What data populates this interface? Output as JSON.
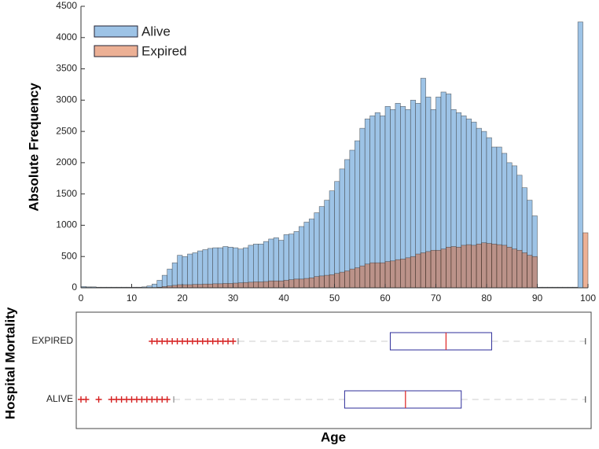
{
  "chart_data": [
    {
      "type": "histogram",
      "ylabel": "Absolute Frequency",
      "bins": [
        0,
        1,
        2,
        3,
        4,
        5,
        6,
        7,
        8,
        9,
        10,
        11,
        12,
        13,
        14,
        15,
        16,
        17,
        18,
        19,
        20,
        21,
        22,
        23,
        24,
        25,
        26,
        27,
        28,
        29,
        30,
        31,
        32,
        33,
        34,
        35,
        36,
        37,
        38,
        39,
        40,
        41,
        42,
        43,
        44,
        45,
        46,
        47,
        48,
        49,
        50,
        51,
        52,
        53,
        54,
        55,
        56,
        57,
        58,
        59,
        60,
        61,
        62,
        63,
        64,
        65,
        66,
        67,
        68,
        69,
        70,
        71,
        72,
        73,
        74,
        75,
        76,
        77,
        78,
        79,
        80,
        81,
        82,
        83,
        84,
        85,
        86,
        87,
        88,
        89,
        90,
        91,
        92,
        93,
        94,
        95,
        96,
        97,
        98,
        99,
        100
      ],
      "series": [
        {
          "name": "Alive",
          "color": "#9dc3e6",
          "values": [
            20,
            15,
            15,
            10,
            10,
            10,
            10,
            10,
            10,
            10,
            10,
            10,
            15,
            30,
            60,
            120,
            200,
            300,
            400,
            520,
            500,
            540,
            560,
            590,
            610,
            630,
            640,
            640,
            660,
            650,
            640,
            620,
            640,
            680,
            700,
            700,
            740,
            780,
            800,
            760,
            850,
            860,
            900,
            980,
            1050,
            1100,
            1200,
            1300,
            1400,
            1550,
            1700,
            1900,
            2050,
            2200,
            2350,
            2550,
            2700,
            2750,
            2800,
            2750,
            2900,
            2850,
            2950,
            2900,
            2850,
            3000,
            2950,
            3350,
            3050,
            2850,
            3050,
            3130,
            3100,
            2850,
            2800,
            2750,
            2700,
            2650,
            2550,
            2500,
            2400,
            2250,
            2250,
            2150,
            2000,
            1950,
            1800,
            1600,
            1400,
            1150,
            10,
            10,
            10,
            10,
            10,
            10,
            10,
            10,
            4250,
            0
          ]
        },
        {
          "name": "Expired",
          "color": "#d9622b",
          "values": [
            5,
            5,
            5,
            5,
            5,
            5,
            5,
            5,
            5,
            5,
            5,
            5,
            5,
            5,
            5,
            10,
            20,
            30,
            40,
            50,
            50,
            50,
            55,
            55,
            60,
            60,
            65,
            65,
            70,
            70,
            75,
            80,
            85,
            90,
            95,
            95,
            100,
            110,
            110,
            110,
            120,
            130,
            140,
            140,
            150,
            160,
            180,
            190,
            200,
            210,
            230,
            250,
            270,
            300,
            320,
            350,
            380,
            400,
            400,
            400,
            420,
            430,
            450,
            460,
            480,
            500,
            540,
            560,
            580,
            600,
            600,
            620,
            650,
            660,
            650,
            680,
            690,
            680,
            700,
            720,
            710,
            700,
            690,
            680,
            650,
            620,
            600,
            560,
            520,
            500,
            5,
            5,
            5,
            5,
            5,
            5,
            5,
            5,
            0,
            880
          ]
        }
      ],
      "xlim": [
        0,
        100
      ],
      "xticks": [
        0,
        10,
        20,
        30,
        40,
        50,
        60,
        70,
        80,
        90,
        100
      ],
      "ylim": [
        0,
        4500
      ],
      "yticks": [
        0,
        500,
        1000,
        1500,
        2000,
        2500,
        3000,
        3500,
        4000,
        4500
      ],
      "legend": "upper-left"
    },
    {
      "type": "box",
      "xlabel": "Age",
      "ylabel": "Hospital Mortality",
      "categories": [
        "EXPIRED",
        "ALIVE"
      ],
      "xlim": [
        0,
        100
      ],
      "box_color": "#2e2e9a",
      "median_color": "#e03030",
      "flier_color": "#d62020",
      "whisker_color": "#aaaaaa",
      "boxes": [
        {
          "whislo": 31,
          "q1": 61,
          "med": 72,
          "q3": 81,
          "whishi": 99.5,
          "fliers": [
            14,
            15,
            16,
            17,
            18,
            19,
            20,
            21,
            22,
            23,
            24,
            25,
            26,
            27,
            28,
            29,
            30
          ]
        },
        {
          "whislo": 18.3,
          "q1": 52,
          "med": 64,
          "q3": 75,
          "whishi": 99.5,
          "fliers": [
            0,
            1,
            3.5,
            6,
            7,
            8,
            9,
            10,
            11,
            12,
            13,
            14,
            15,
            16,
            17
          ]
        }
      ]
    }
  ]
}
